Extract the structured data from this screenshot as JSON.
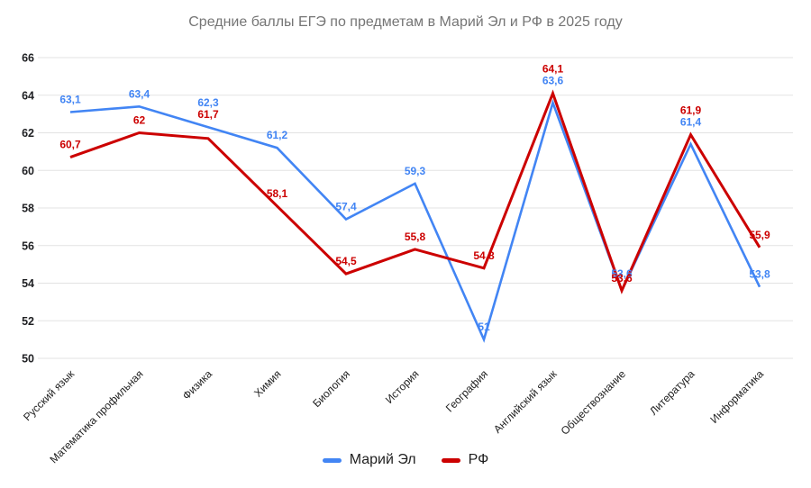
{
  "title": "Средние баллы ЕГЭ по предметам в Марий Эл и РФ в 2025 году",
  "colors": {
    "series_mariy_el": "#4285f4",
    "series_rf": "#cc0000",
    "gridline": "#e3e3e3",
    "title_text": "#757575",
    "axis_text": "#1f1f1f"
  },
  "chart_data": {
    "type": "line",
    "title": "Средние баллы ЕГЭ по предметам в Марий Эл и РФ в 2025 году",
    "categories": [
      "Русский язык",
      "Математика профильная",
      "Физика",
      "Химия",
      "Биология",
      "История",
      "География",
      "Английский язык",
      "Обществознание",
      "Литература",
      "Информатика"
    ],
    "series": [
      {
        "name": "Марий Эл",
        "color": "#4285f4",
        "stroke_width": 2.6,
        "values": [
          63.1,
          63.4,
          62.3,
          61.2,
          57.4,
          59.3,
          51,
          63.6,
          53.6,
          61.4,
          53.8
        ]
      },
      {
        "name": "РФ",
        "color": "#cc0000",
        "stroke_width": 3,
        "values": [
          60.7,
          62,
          61.7,
          58.1,
          54.5,
          55.8,
          54.8,
          64.1,
          53.6,
          61.9,
          55.9
        ]
      }
    ],
    "y_ticks": [
      66,
      64,
      62,
      60,
      58,
      56,
      54,
      52,
      50
    ],
    "ylim": [
      50,
      66
    ],
    "grid": "horizontal-only",
    "data_labels": "on",
    "decimal_separator": ",",
    "legend_position": "bottom",
    "x_label_rotation_deg": -45
  }
}
